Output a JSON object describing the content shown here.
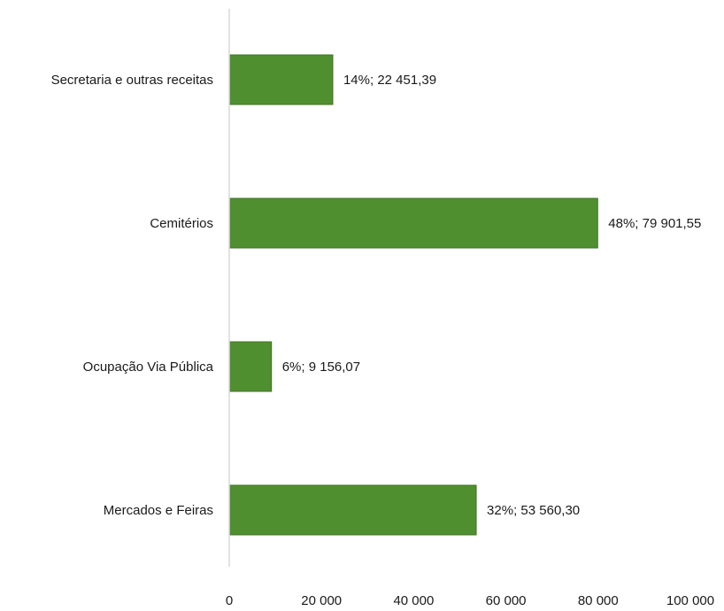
{
  "chart_data": {
    "type": "bar",
    "orientation": "horizontal",
    "categories": [
      "Secretaria e outras receitas",
      "Cemitérios",
      "Ocupação Via Pública",
      "Mercados e Feiras"
    ],
    "values": [
      22451.39,
      79901.55,
      9156.07,
      53560.3
    ],
    "data_labels": [
      "14%; 22 451,39",
      "48%; 79 901,55",
      "6%; 9 156,07",
      "32%; 53 560,30"
    ],
    "x_ticks": [
      0,
      20000,
      40000,
      60000,
      80000,
      100000
    ],
    "x_tick_labels": [
      "0",
      "20 000",
      "40 000",
      "60 000",
      "80 000",
      "100 000"
    ],
    "xlim": [
      0,
      100000
    ],
    "title": "",
    "xlabel": "",
    "ylabel": "",
    "grid": false,
    "legend": "none",
    "colors": {
      "bar": "#4f8f2f",
      "bar_edge": "#3c7422",
      "axis": "#d9d9d9",
      "text": "#1a1a1a"
    }
  }
}
